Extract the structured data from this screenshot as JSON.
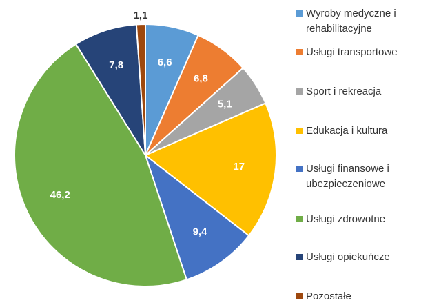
{
  "chart_data": {
    "type": "pie",
    "categories": [
      "Wyroby medyczne i rehabilitacyjne",
      "Usługi transportowe",
      "Sport i rekreacja",
      "Edukacja i kultura",
      "Usługi finansowe i ubezpieczeniowe",
      "Usługi zdrowotne",
      "Usługi opiekuńcze",
      "Pozostałe"
    ],
    "values": [
      6.6,
      6.8,
      5.1,
      17,
      9.4,
      46.2,
      7.8,
      1.1
    ],
    "value_labels": [
      "6,6",
      "6,8",
      "5,1",
      "17",
      "9,4",
      "46,2",
      "7,8",
      "1,1"
    ],
    "colors": [
      "#5b9bd5",
      "#ed7d31",
      "#a5a5a5",
      "#ffc000",
      "#4472c4",
      "#70ad47",
      "#264478",
      "#9e480e"
    ]
  }
}
